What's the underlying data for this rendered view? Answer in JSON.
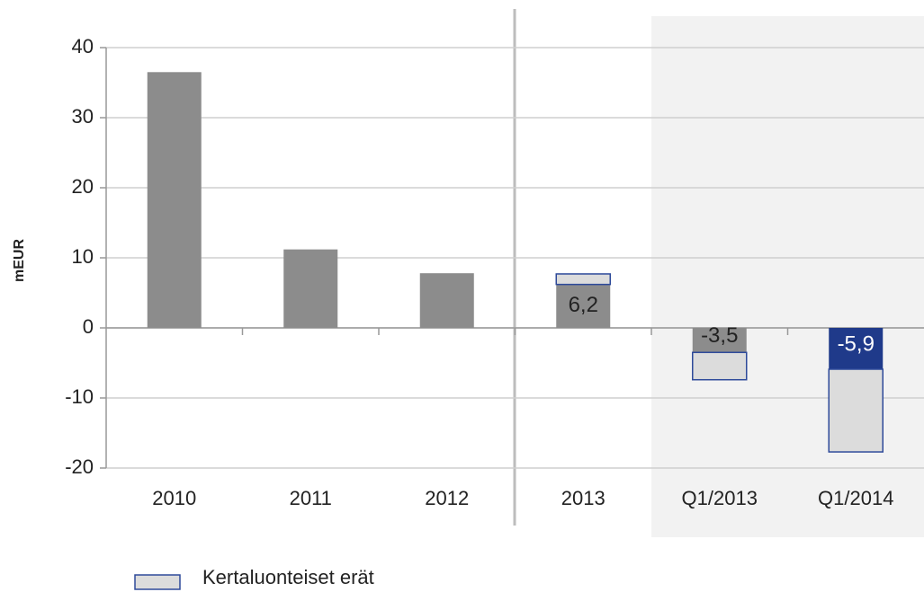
{
  "chart_data": {
    "type": "stacked_bar",
    "y_label": "mEUR",
    "categories": [
      "2010",
      "2011",
      "2012",
      "2013",
      "Q1/2013",
      "Q1/2014"
    ],
    "series": [
      {
        "colors": [
          "#8c8c8c",
          "#8c8c8c",
          "#8c8c8c",
          "#8c8c8c",
          "#8c8c8c",
          "#1f3a8a"
        ],
        "values": [
          36.5,
          11.2,
          7.8,
          6.2,
          -3.5,
          -5.9
        ],
        "value_labels": [
          null,
          null,
          null,
          "6,2",
          "-3,5",
          "-5,9"
        ]
      },
      {
        "name": "Kertaluonteiset erät",
        "color": "#dcdcdc",
        "edge_color": "#2e4a9a",
        "values": [
          0,
          0,
          0,
          1.5,
          -3.9,
          -11.8
        ]
      }
    ],
    "ylim": [
      -20,
      40
    ],
    "yticks": [
      -20,
      -10,
      0,
      10,
      20,
      30,
      40
    ],
    "grid": true,
    "legend": "bottom-left"
  }
}
